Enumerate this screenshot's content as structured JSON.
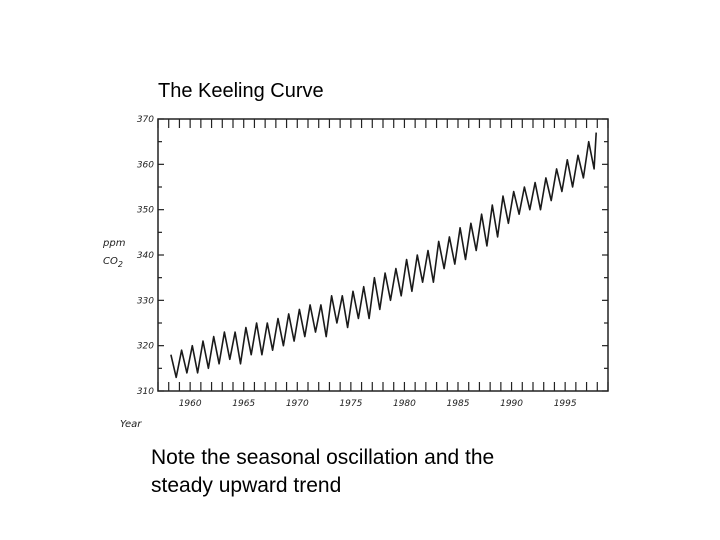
{
  "slide": {
    "title": "The Keeling Curve",
    "note_line1": "Note the seasonal oscillation and the",
    "note_line2": "steady upward trend"
  },
  "chart_data": {
    "type": "line",
    "title": "The Keeling Curve",
    "xlabel": "Year",
    "ylabel": "ppm CO2",
    "ylabel_top": "ppm",
    "ylabel_bottom": "CO",
    "ylabel_sub": "2",
    "xlim": [
      1957,
      1999
    ],
    "ylim": [
      310,
      370
    ],
    "x_ticks": [
      1960,
      1965,
      1970,
      1975,
      1980,
      1985,
      1990,
      1995
    ],
    "x_tick_labels": [
      "1960",
      "1965",
      "1970",
      "1975",
      "1980",
      "1985",
      "1990",
      "1995"
    ],
    "y_ticks": [
      310,
      320,
      330,
      340,
      350,
      360,
      370
    ],
    "y_tick_labels": [
      "310",
      "320",
      "330",
      "340",
      "350",
      "360",
      "370"
    ],
    "grid": false,
    "line_color": "#1a1a1a",
    "series": [
      {
        "x": [
          1958.2,
          1958.7,
          1959.2,
          1959.7,
          1960.2,
          1960.7,
          1961.2,
          1961.7,
          1962.2,
          1962.7,
          1963.2,
          1963.7,
          1964.2,
          1964.7,
          1965.2,
          1965.7,
          1966.2,
          1966.7,
          1967.2,
          1967.7,
          1968.2,
          1968.7,
          1969.2,
          1969.7,
          1970.2,
          1970.7,
          1971.2,
          1971.7,
          1972.2,
          1972.7,
          1973.2,
          1973.7,
          1974.2,
          1974.7,
          1975.2,
          1975.7,
          1976.2,
          1976.7,
          1977.2,
          1977.7,
          1978.2,
          1978.7,
          1979.2,
          1979.7,
          1980.2,
          1980.7,
          1981.2,
          1981.7,
          1982.2,
          1982.7,
          1983.2,
          1983.7,
          1984.2,
          1984.7,
          1985.2,
          1985.7,
          1986.2,
          1986.7,
          1987.2,
          1987.7,
          1988.2,
          1988.7,
          1989.2,
          1989.7,
          1990.2,
          1990.7,
          1991.2,
          1991.7,
          1992.2,
          1992.7,
          1993.2,
          1993.7,
          1994.2,
          1994.7,
          1995.2,
          1995.7,
          1996.2,
          1996.7,
          1997.2,
          1997.7,
          1997.9
        ],
        "y": [
          318,
          313,
          319,
          314,
          320,
          314,
          321,
          315,
          322,
          316,
          323,
          317,
          323,
          316,
          324,
          318,
          325,
          318,
          325,
          319,
          326,
          320,
          327,
          321,
          328,
          322,
          329,
          323,
          329,
          322,
          331,
          325,
          331,
          324,
          332,
          326,
          333,
          326,
          335,
          328,
          336,
          330,
          337,
          331,
          339,
          332,
          340,
          334,
          341,
          334,
          343,
          337,
          344,
          338,
          346,
          339,
          347,
          341,
          349,
          342,
          351,
          344,
          353,
          347,
          354,
          349,
          355,
          350,
          356,
          350,
          357,
          352,
          359,
          354,
          361,
          355,
          362,
          357,
          365,
          359,
          367
        ]
      }
    ]
  }
}
